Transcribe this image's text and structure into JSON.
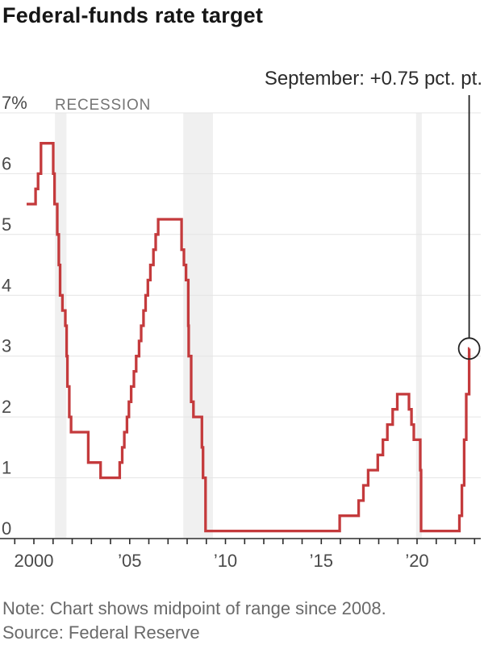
{
  "title": "Federal-funds rate target",
  "annotation": {
    "label": "September: +0.75 pct. pt.",
    "year": 2022.72,
    "value": 3.125
  },
  "recession_label": "RECESSION",
  "note": "Note: Chart shows midpoint of range since 2008.",
  "source": "Source: Federal Reserve",
  "colors": {
    "line": "#c43a3c",
    "recession_band": "#f0f0f0",
    "gridline": "#e4e4e4",
    "axis": "#2b2b2b",
    "callout": "#222222",
    "tick_label": "#4a4a4a"
  },
  "axis": {
    "y_ticks": [
      {
        "value": 0,
        "label": "0"
      },
      {
        "value": 1,
        "label": "1"
      },
      {
        "value": 2,
        "label": "2"
      },
      {
        "value": 3,
        "label": "3"
      },
      {
        "value": 4,
        "label": "4"
      },
      {
        "value": 5,
        "label": "5"
      },
      {
        "value": 6,
        "label": "6"
      },
      {
        "value": 7,
        "label": "7%"
      }
    ],
    "x_ticks": [
      {
        "year": 2000,
        "label": "2000"
      },
      {
        "year": 2005,
        "label": "’05"
      },
      {
        "year": 2010,
        "label": "’10"
      },
      {
        "year": 2015,
        "label": "’15"
      },
      {
        "year": 2020,
        "label": "’20"
      }
    ]
  },
  "chart_data": {
    "type": "line",
    "step": true,
    "title": "Federal-funds rate target",
    "ylabel": "percent",
    "ylim": [
      0,
      7
    ],
    "xlim": [
      1999.55,
      2023.3
    ],
    "grid": "horizontal",
    "points": [
      [
        1999.62,
        5.5
      ],
      [
        2000.09,
        5.75
      ],
      [
        2000.22,
        6.0
      ],
      [
        2000.37,
        6.5
      ],
      [
        2001.01,
        6.0
      ],
      [
        2001.08,
        5.5
      ],
      [
        2001.22,
        5.0
      ],
      [
        2001.3,
        4.5
      ],
      [
        2001.37,
        4.0
      ],
      [
        2001.49,
        3.75
      ],
      [
        2001.64,
        3.5
      ],
      [
        2001.71,
        3.0
      ],
      [
        2001.75,
        2.5
      ],
      [
        2001.85,
        2.0
      ],
      [
        2001.94,
        1.75
      ],
      [
        2002.84,
        1.25
      ],
      [
        2003.48,
        1.0
      ],
      [
        2004.48,
        1.25
      ],
      [
        2004.61,
        1.5
      ],
      [
        2004.72,
        1.75
      ],
      [
        2004.86,
        2.0
      ],
      [
        2004.96,
        2.25
      ],
      [
        2005.08,
        2.5
      ],
      [
        2005.22,
        2.75
      ],
      [
        2005.34,
        3.0
      ],
      [
        2005.49,
        3.25
      ],
      [
        2005.6,
        3.5
      ],
      [
        2005.72,
        3.75
      ],
      [
        2005.83,
        4.0
      ],
      [
        2005.95,
        4.25
      ],
      [
        2006.08,
        4.5
      ],
      [
        2006.24,
        4.75
      ],
      [
        2006.36,
        5.0
      ],
      [
        2006.49,
        5.25
      ],
      [
        2007.71,
        4.75
      ],
      [
        2007.83,
        4.5
      ],
      [
        2007.94,
        4.25
      ],
      [
        2008.06,
        3.5
      ],
      [
        2008.08,
        3.0
      ],
      [
        2008.21,
        2.25
      ],
      [
        2008.33,
        2.0
      ],
      [
        2008.77,
        1.5
      ],
      [
        2008.83,
        1.0
      ],
      [
        2008.96,
        0.125
      ],
      [
        2015.96,
        0.375
      ],
      [
        2016.95,
        0.625
      ],
      [
        2017.2,
        0.875
      ],
      [
        2017.45,
        1.125
      ],
      [
        2017.95,
        1.375
      ],
      [
        2018.22,
        1.625
      ],
      [
        2018.45,
        1.875
      ],
      [
        2018.73,
        2.125
      ],
      [
        2018.97,
        2.375
      ],
      [
        2019.58,
        2.125
      ],
      [
        2019.71,
        1.875
      ],
      [
        2019.83,
        1.625
      ],
      [
        2020.17,
        1.125
      ],
      [
        2020.21,
        0.125
      ],
      [
        2022.21,
        0.375
      ],
      [
        2022.34,
        0.875
      ],
      [
        2022.46,
        1.625
      ],
      [
        2022.57,
        2.375
      ],
      [
        2022.72,
        3.125
      ]
    ],
    "end_year": 2022.73,
    "recessions": [
      [
        2001.1,
        2001.7
      ],
      [
        2007.8,
        2009.35
      ],
      [
        2019.95,
        2020.25
      ]
    ],
    "minor_tick_years": {
      "from": 1999,
      "to": 2023
    }
  }
}
